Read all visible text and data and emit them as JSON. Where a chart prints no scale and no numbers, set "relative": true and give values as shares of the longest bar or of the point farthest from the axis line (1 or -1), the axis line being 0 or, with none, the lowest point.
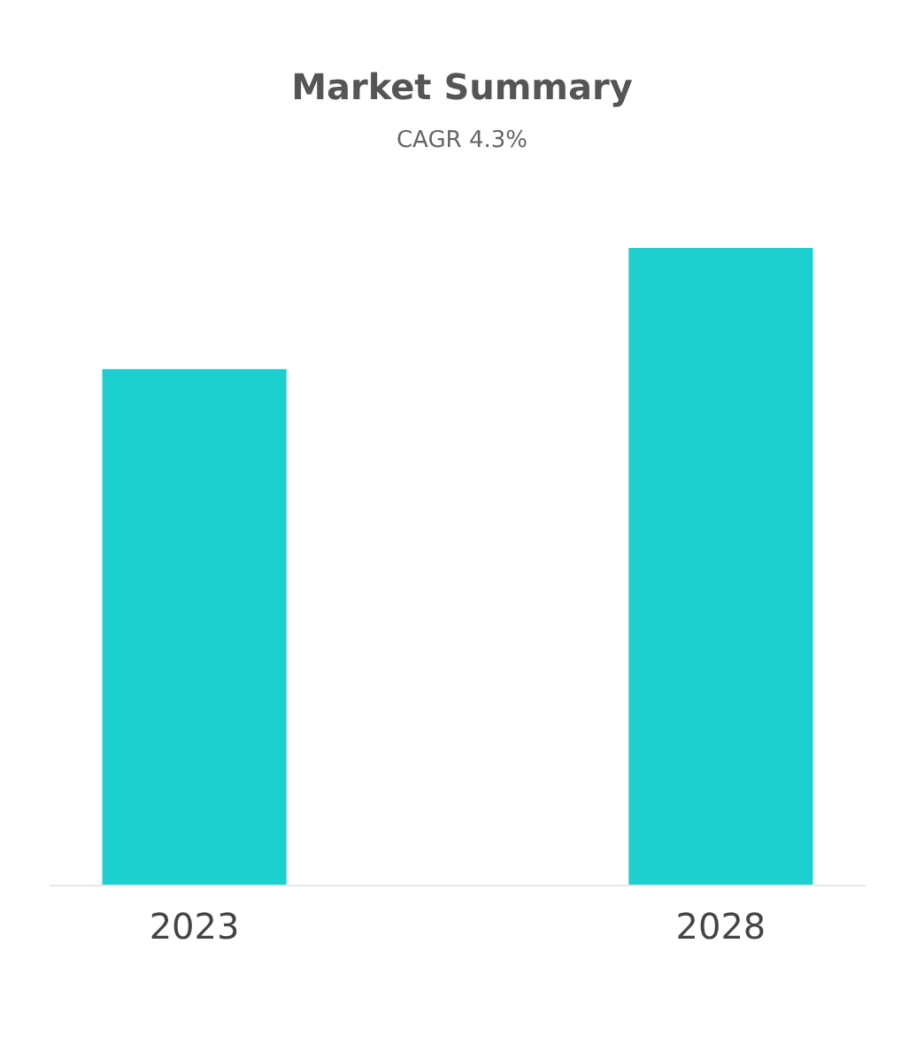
{
  "chart_data": {
    "type": "bar",
    "title": "Market Summary",
    "subtitle": "CAGR 4.3%",
    "categories": [
      "2023",
      "2028"
    ],
    "values": [
      0.81,
      1
    ],
    "color": "#1ecfd0",
    "relative": true
  }
}
